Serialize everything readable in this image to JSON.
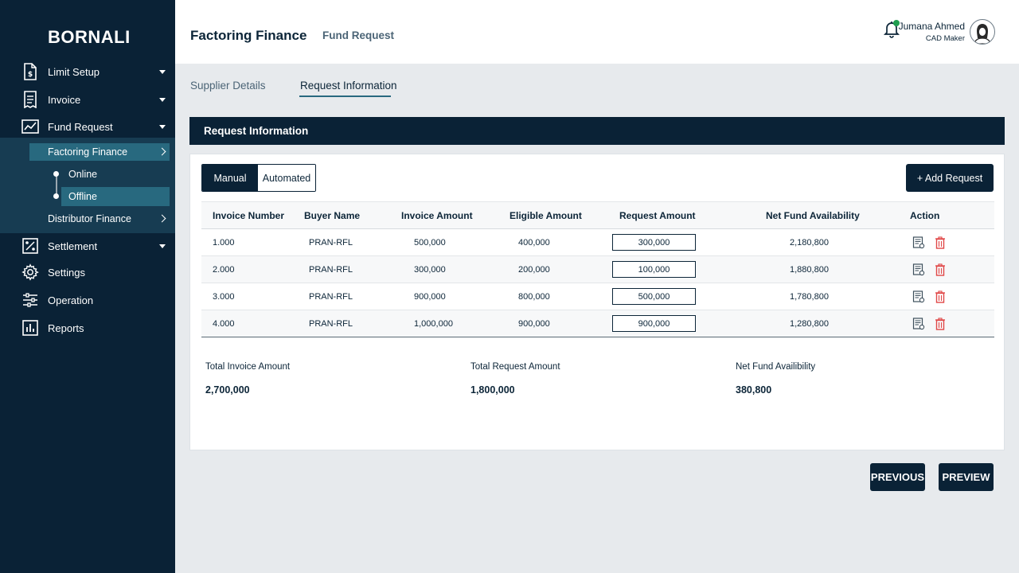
{
  "sidebar": {
    "brand": "BORNALI",
    "items": [
      {
        "label": "Limit Setup",
        "icon": "document-dollar-icon"
      },
      {
        "label": "Invoice",
        "icon": "receipt-icon"
      },
      {
        "label": "Fund Request",
        "icon": "trend-chart-icon"
      },
      {
        "label": "Settlement",
        "icon": "percent-box-icon"
      },
      {
        "label": "Settings",
        "icon": "gear-icon"
      },
      {
        "label": "Operation",
        "icon": "sliders-icon"
      },
      {
        "label": "Reports",
        "icon": "bar-chart-icon"
      }
    ],
    "fund_request_sub": {
      "factoring": "Factoring Finance",
      "online": "Online",
      "offline": "Offline",
      "distributor": "Distributor Finance"
    }
  },
  "header": {
    "title": "Factoring Finance",
    "subtitle": "Fund Request",
    "user_name": "Jumana Ahmed",
    "user_role": "CAD Maker"
  },
  "tabs": [
    "Supplier Details",
    "Request Information"
  ],
  "panel": {
    "title": "Request Information",
    "toggle": {
      "manual": "Manual",
      "automated": "Automated"
    },
    "add_button": "+ Add Request"
  },
  "table": {
    "headers": [
      "Invoice Number",
      "Buyer Name",
      "Invoice Amount",
      "Eligible Amount",
      "Request Amount",
      "Net Fund Availability",
      "Action"
    ],
    "rows": [
      [
        "1.000",
        "PRAN-RFL",
        "500,000",
        "400,000",
        "300,000",
        "2,180,800"
      ],
      [
        "2.000",
        "PRAN-RFL",
        "300,000",
        "200,000",
        "100,000",
        "1,880,800"
      ],
      [
        "3.000",
        "PRAN-RFL",
        "900,000",
        "800,000",
        "500,000",
        "1,780,800"
      ],
      [
        "4.000",
        "PRAN-RFL",
        "1,000,000",
        "900,000",
        "900,000",
        "1,280,800"
      ]
    ]
  },
  "summary": {
    "total_invoice_label": "Total Invoice Amount",
    "total_invoice_value": "2,700,000",
    "total_request_label": "Total Request Amount",
    "total_request_value": "1,800,000",
    "net_fund_label": "Net Fund Availibility",
    "net_fund_value": "380,800"
  },
  "footer": {
    "previous": "PREVIOUS",
    "preview": "PREVIEW"
  },
  "colors": {
    "navy": "#0a2236",
    "teal": "#28697f",
    "delete": "#e04848",
    "online_dot": "#1f9d4f"
  }
}
